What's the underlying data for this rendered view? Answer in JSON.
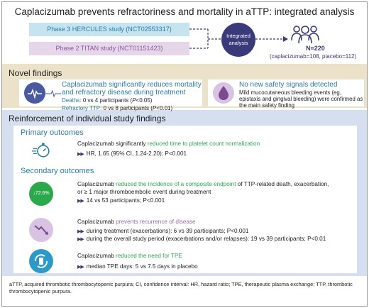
{
  "title": "Caplacizumab prevents refractoriness and mortality in aTTP: integrated analysis",
  "studies": {
    "hercules": "Phase 3 HERCULES study (NCT02553317)",
    "titan": "Phase 2 TITAN study (NCT01151423)"
  },
  "integrated_label": [
    "Integrated",
    "analysis"
  ],
  "n_total": "N=220",
  "n_breakdown": "(caplacizumab=108, placebo=112)",
  "novel": {
    "title": "Novel findings",
    "left_heading": "Caplacizumab significantly reduces mortality and refractory disease during treatment",
    "deaths_label": "Deaths:",
    "deaths_text": "0 vs 4 participants (",
    "deaths_p": "P",
    "deaths_tail": "<0.05)",
    "refractory_label": "Refractory TTP:",
    "refractory_text": "0 vs 8 participants (",
    "refractory_p": "P",
    "refractory_tail": "<0.01)",
    "right_heading": "No new safety signals detected",
    "right_desc": "Mild mucocutaneous bleeding events (eg, epistaxis and gingival bleeding) were confirmed as the main safety finding"
  },
  "reinforce": {
    "title": "Reinforcement of individual study findings",
    "primary_title": "Primary outcomes",
    "secondary_title": "Secondary outcomes",
    "o1_prefix": "Caplacizumab significantly ",
    "o1_hl": "reduced time to platelet count normalization",
    "o1_b1": "HR, 1.65 (95% CI, 1.24-2.20); P<0.001",
    "o2_prefix": "Caplacizumab ",
    "o2_hl": "reduced the incidence of a composite endpoint",
    "o2_suffix": " of TTP-related death, exacerbation,",
    "o2_line2": "or ≥ 1 major thromboembolic event during treatment",
    "o2_b1": "14 vs 53 participants; P<0.001",
    "o2_badge": "↓72.6%",
    "o3_prefix": "Caplacizumab ",
    "o3_hl": "prevents recurrence of disease",
    "o3_b1": "during treatment (exacerbations): 6 vs 39 participants; P<0.001",
    "o3_b2": "during the overall study period (exacerbations and/or relapses): 19 vs 39 participants; P<0.01",
    "o4_prefix": "Caplacizumab ",
    "o4_hl": "reduced the need for TPE",
    "o4_b1": "median TPE days: 5 vs 7.5 days in placebo"
  },
  "arrow_glyph": "▶▶",
  "footnote": "aTTP, acquired thrombotic thrombocytopenic purpura; CI, confidence interval: HR, hazard ratio; TPE, therapeutic plasma exchange; TTP, thrombotic thrombocytopenic purpura.",
  "colors": {
    "navy": "#3a3a7a",
    "blue": "#2b7da5",
    "green": "#2aa84a",
    "purple": "#9a6aa8",
    "beige": "#ece2c9",
    "lightblue": "#d6dfef"
  }
}
